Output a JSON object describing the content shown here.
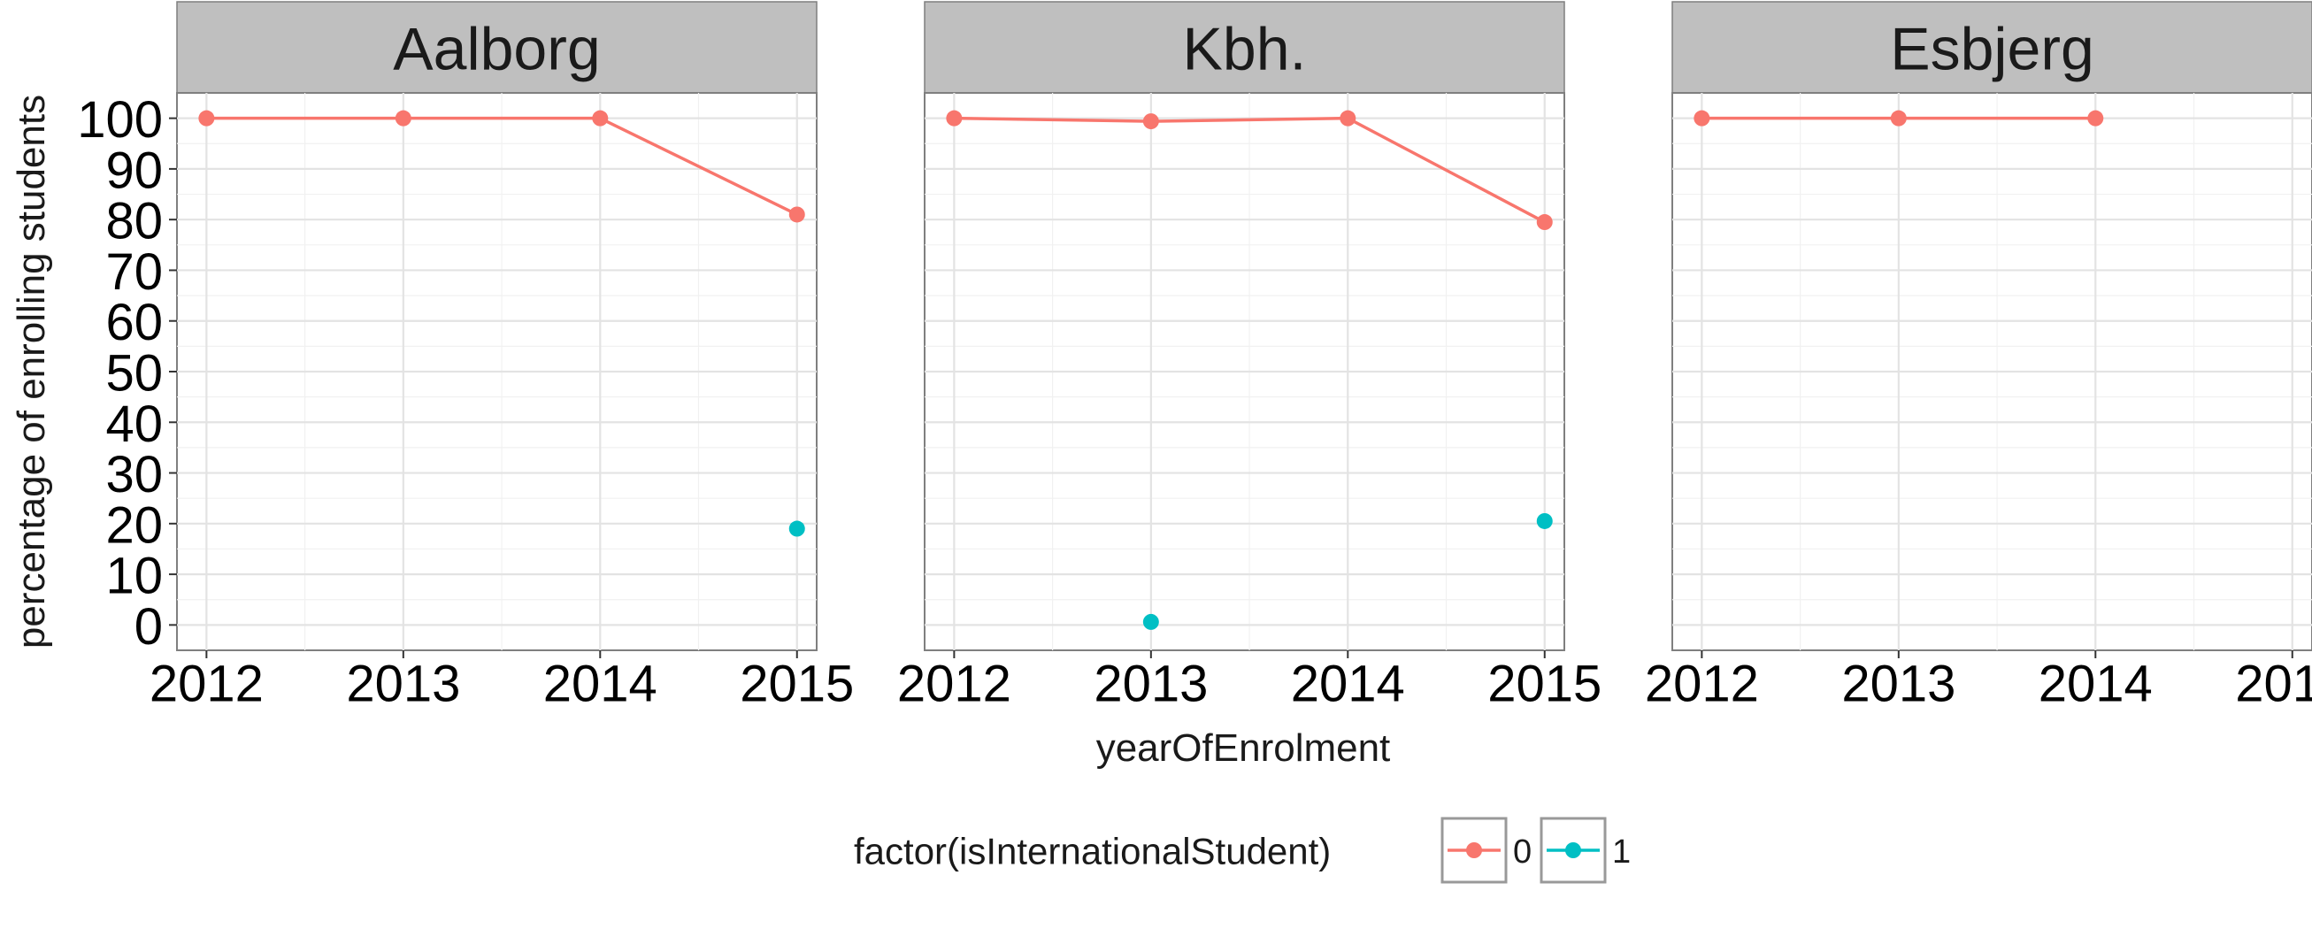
{
  "chart_data": {
    "type": "line",
    "facet_var": "",
    "facets": [
      "Aalborg",
      "Kbh.",
      "Esbjerg"
    ],
    "x": [
      2012,
      2013,
      2014,
      2015
    ],
    "x_tick_labels": [
      "2012",
      "2013",
      "2014",
      "2015"
    ],
    "xlabel": "yearOfEnrolment",
    "ylabel": "percentage of enrolling students",
    "ylim": [
      -5,
      105
    ],
    "xlim": [
      2011.85,
      2015.1
    ],
    "y_ticks": [
      0,
      10,
      20,
      30,
      40,
      50,
      60,
      70,
      80,
      90,
      100
    ],
    "grid": true,
    "legend": {
      "title": "factor(isInternationalStudent)",
      "position": "bottom",
      "entries": [
        "0",
        "1"
      ]
    },
    "series": [
      {
        "name": "0",
        "color": "#F8766D",
        "values": {
          "Aalborg": [
            100,
            100,
            100,
            81
          ],
          "Kbh.": [
            100,
            99.4,
            100,
            79.5
          ],
          "Esbjerg": [
            100,
            100,
            100,
            null
          ]
        }
      },
      {
        "name": "1",
        "color": "#00BFC4",
        "values": {
          "Aalborg": [
            null,
            null,
            null,
            19
          ],
          "Kbh.": [
            null,
            0.6,
            null,
            20.5
          ],
          "Esbjerg": [
            null,
            null,
            null,
            null
          ]
        }
      }
    ]
  }
}
